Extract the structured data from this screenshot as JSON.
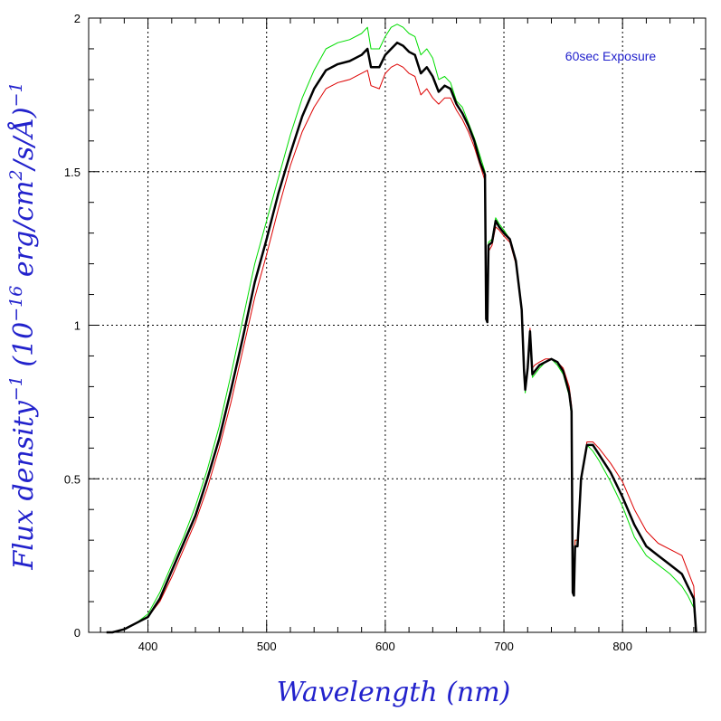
{
  "chart_data": {
    "type": "line",
    "title": "",
    "annotation": "60sec Exposure",
    "xlabel": "Wavelength (nm)",
    "ylabel_parts": {
      "pre": "Flux density",
      "sup1": "−1",
      "mid": " (10",
      "sup2": "−16",
      "mid2": " erg/cm",
      "sup3": "2",
      "post": "/s/Å)",
      "sup4": "−1"
    },
    "xlim": [
      350,
      870
    ],
    "ylim": [
      0,
      2
    ],
    "xticks": [
      400,
      500,
      600,
      700,
      800
    ],
    "xtick_labels": [
      "400",
      "500",
      "600",
      "700",
      "800"
    ],
    "yticks": [
      0,
      0.5,
      1,
      1.5,
      2
    ],
    "ytick_labels": [
      "0",
      "0.5",
      "1",
      "1.5",
      "2"
    ],
    "grid": true,
    "colors": {
      "mean": "#000000",
      "upper": "#00dd00",
      "lower": "#dd0000",
      "label": "#2222cc",
      "grid": "#000000"
    },
    "series": [
      {
        "key": "upper",
        "x": [
          370,
          380,
          390,
          400,
          410,
          420,
          430,
          440,
          450,
          460,
          470,
          480,
          490,
          500,
          510,
          520,
          530,
          540,
          550,
          560,
          570,
          580,
          585,
          588,
          595,
          600,
          605,
          610,
          615,
          620,
          625,
          630,
          635,
          640,
          645,
          650,
          655,
          660,
          665,
          670,
          675,
          680,
          684,
          685,
          686,
          687,
          690,
          693,
          696,
          700,
          705,
          710,
          715,
          717,
          718,
          720,
          722,
          724,
          726,
          730,
          735,
          740,
          745,
          750,
          755,
          757,
          758,
          759,
          760,
          762,
          765,
          770,
          775,
          780,
          790,
          800,
          810,
          820,
          830,
          840,
          850,
          855,
          860,
          862
        ],
        "y": [
          0.0,
          0.01,
          0.03,
          0.06,
          0.13,
          0.22,
          0.31,
          0.41,
          0.53,
          0.67,
          0.84,
          1.02,
          1.2,
          1.34,
          1.48,
          1.62,
          1.74,
          1.83,
          1.9,
          1.92,
          1.93,
          1.95,
          1.97,
          1.9,
          1.9,
          1.94,
          1.97,
          1.98,
          1.97,
          1.95,
          1.94,
          1.88,
          1.9,
          1.87,
          1.8,
          1.81,
          1.79,
          1.73,
          1.71,
          1.66,
          1.61,
          1.55,
          1.5,
          1.1,
          1.03,
          1.27,
          1.28,
          1.35,
          1.33,
          1.31,
          1.28,
          1.2,
          1.05,
          0.85,
          0.78,
          0.85,
          0.97,
          0.83,
          0.84,
          0.86,
          0.88,
          0.89,
          0.87,
          0.84,
          0.77,
          0.7,
          0.14,
          0.13,
          0.3,
          0.3,
          0.5,
          0.61,
          0.59,
          0.56,
          0.49,
          0.41,
          0.31,
          0.25,
          0.22,
          0.19,
          0.15,
          0.12,
          0.08,
          0.0
        ]
      },
      {
        "key": "lower",
        "x": [
          370,
          380,
          390,
          400,
          410,
          420,
          430,
          440,
          450,
          460,
          470,
          480,
          490,
          500,
          510,
          520,
          530,
          540,
          550,
          560,
          570,
          580,
          585,
          588,
          595,
          600,
          605,
          610,
          615,
          620,
          625,
          630,
          635,
          640,
          645,
          650,
          655,
          660,
          665,
          670,
          675,
          680,
          684,
          685,
          686,
          687,
          690,
          693,
          696,
          700,
          705,
          710,
          715,
          717,
          718,
          720,
          722,
          724,
          726,
          730,
          735,
          740,
          745,
          750,
          755,
          757,
          758,
          759,
          760,
          762,
          765,
          770,
          775,
          780,
          790,
          800,
          810,
          820,
          830,
          840,
          850,
          855,
          860,
          862
        ],
        "y": [
          0.0,
          0.01,
          0.03,
          0.05,
          0.1,
          0.18,
          0.27,
          0.36,
          0.47,
          0.6,
          0.75,
          0.92,
          1.09,
          1.23,
          1.38,
          1.52,
          1.63,
          1.71,
          1.77,
          1.79,
          1.8,
          1.82,
          1.83,
          1.78,
          1.77,
          1.82,
          1.84,
          1.85,
          1.84,
          1.82,
          1.81,
          1.75,
          1.77,
          1.74,
          1.72,
          1.74,
          1.74,
          1.7,
          1.67,
          1.63,
          1.58,
          1.52,
          1.47,
          1.1,
          1.02,
          1.24,
          1.26,
          1.32,
          1.31,
          1.29,
          1.27,
          1.2,
          1.05,
          0.87,
          0.8,
          0.87,
          0.99,
          0.86,
          0.87,
          0.88,
          0.89,
          0.89,
          0.88,
          0.86,
          0.8,
          0.74,
          0.15,
          0.14,
          0.3,
          0.3,
          0.5,
          0.62,
          0.62,
          0.6,
          0.55,
          0.49,
          0.4,
          0.33,
          0.29,
          0.27,
          0.25,
          0.2,
          0.15,
          0.0
        ]
      },
      {
        "key": "mean",
        "x": [
          365,
          370,
          380,
          390,
          400,
          410,
          420,
          430,
          440,
          450,
          460,
          470,
          480,
          490,
          500,
          510,
          520,
          530,
          540,
          550,
          560,
          570,
          580,
          585,
          588,
          595,
          600,
          605,
          610,
          615,
          620,
          625,
          630,
          635,
          640,
          645,
          650,
          655,
          660,
          665,
          670,
          675,
          680,
          684,
          685,
          686,
          687,
          690,
          693,
          696,
          700,
          705,
          710,
          715,
          717,
          718,
          720,
          722,
          724,
          726,
          730,
          735,
          740,
          745,
          750,
          755,
          757,
          758,
          759,
          760,
          762,
          765,
          770,
          775,
          780,
          790,
          800,
          810,
          820,
          830,
          840,
          850,
          855,
          860,
          862
        ],
        "y": [
          0.0,
          0.0,
          0.01,
          0.03,
          0.05,
          0.11,
          0.2,
          0.29,
          0.38,
          0.5,
          0.63,
          0.79,
          0.96,
          1.14,
          1.28,
          1.43,
          1.56,
          1.68,
          1.77,
          1.83,
          1.85,
          1.86,
          1.88,
          1.9,
          1.84,
          1.84,
          1.88,
          1.9,
          1.92,
          1.91,
          1.89,
          1.88,
          1.82,
          1.84,
          1.81,
          1.76,
          1.78,
          1.77,
          1.72,
          1.69,
          1.65,
          1.6,
          1.53,
          1.49,
          1.02,
          1.01,
          1.26,
          1.27,
          1.34,
          1.32,
          1.3,
          1.28,
          1.21,
          1.05,
          0.85,
          0.79,
          0.86,
          0.98,
          0.84,
          0.85,
          0.87,
          0.88,
          0.89,
          0.88,
          0.85,
          0.78,
          0.72,
          0.13,
          0.12,
          0.28,
          0.28,
          0.5,
          0.61,
          0.61,
          0.58,
          0.52,
          0.44,
          0.35,
          0.28,
          0.25,
          0.22,
          0.19,
          0.15,
          0.11,
          0.0
        ]
      }
    ]
  }
}
